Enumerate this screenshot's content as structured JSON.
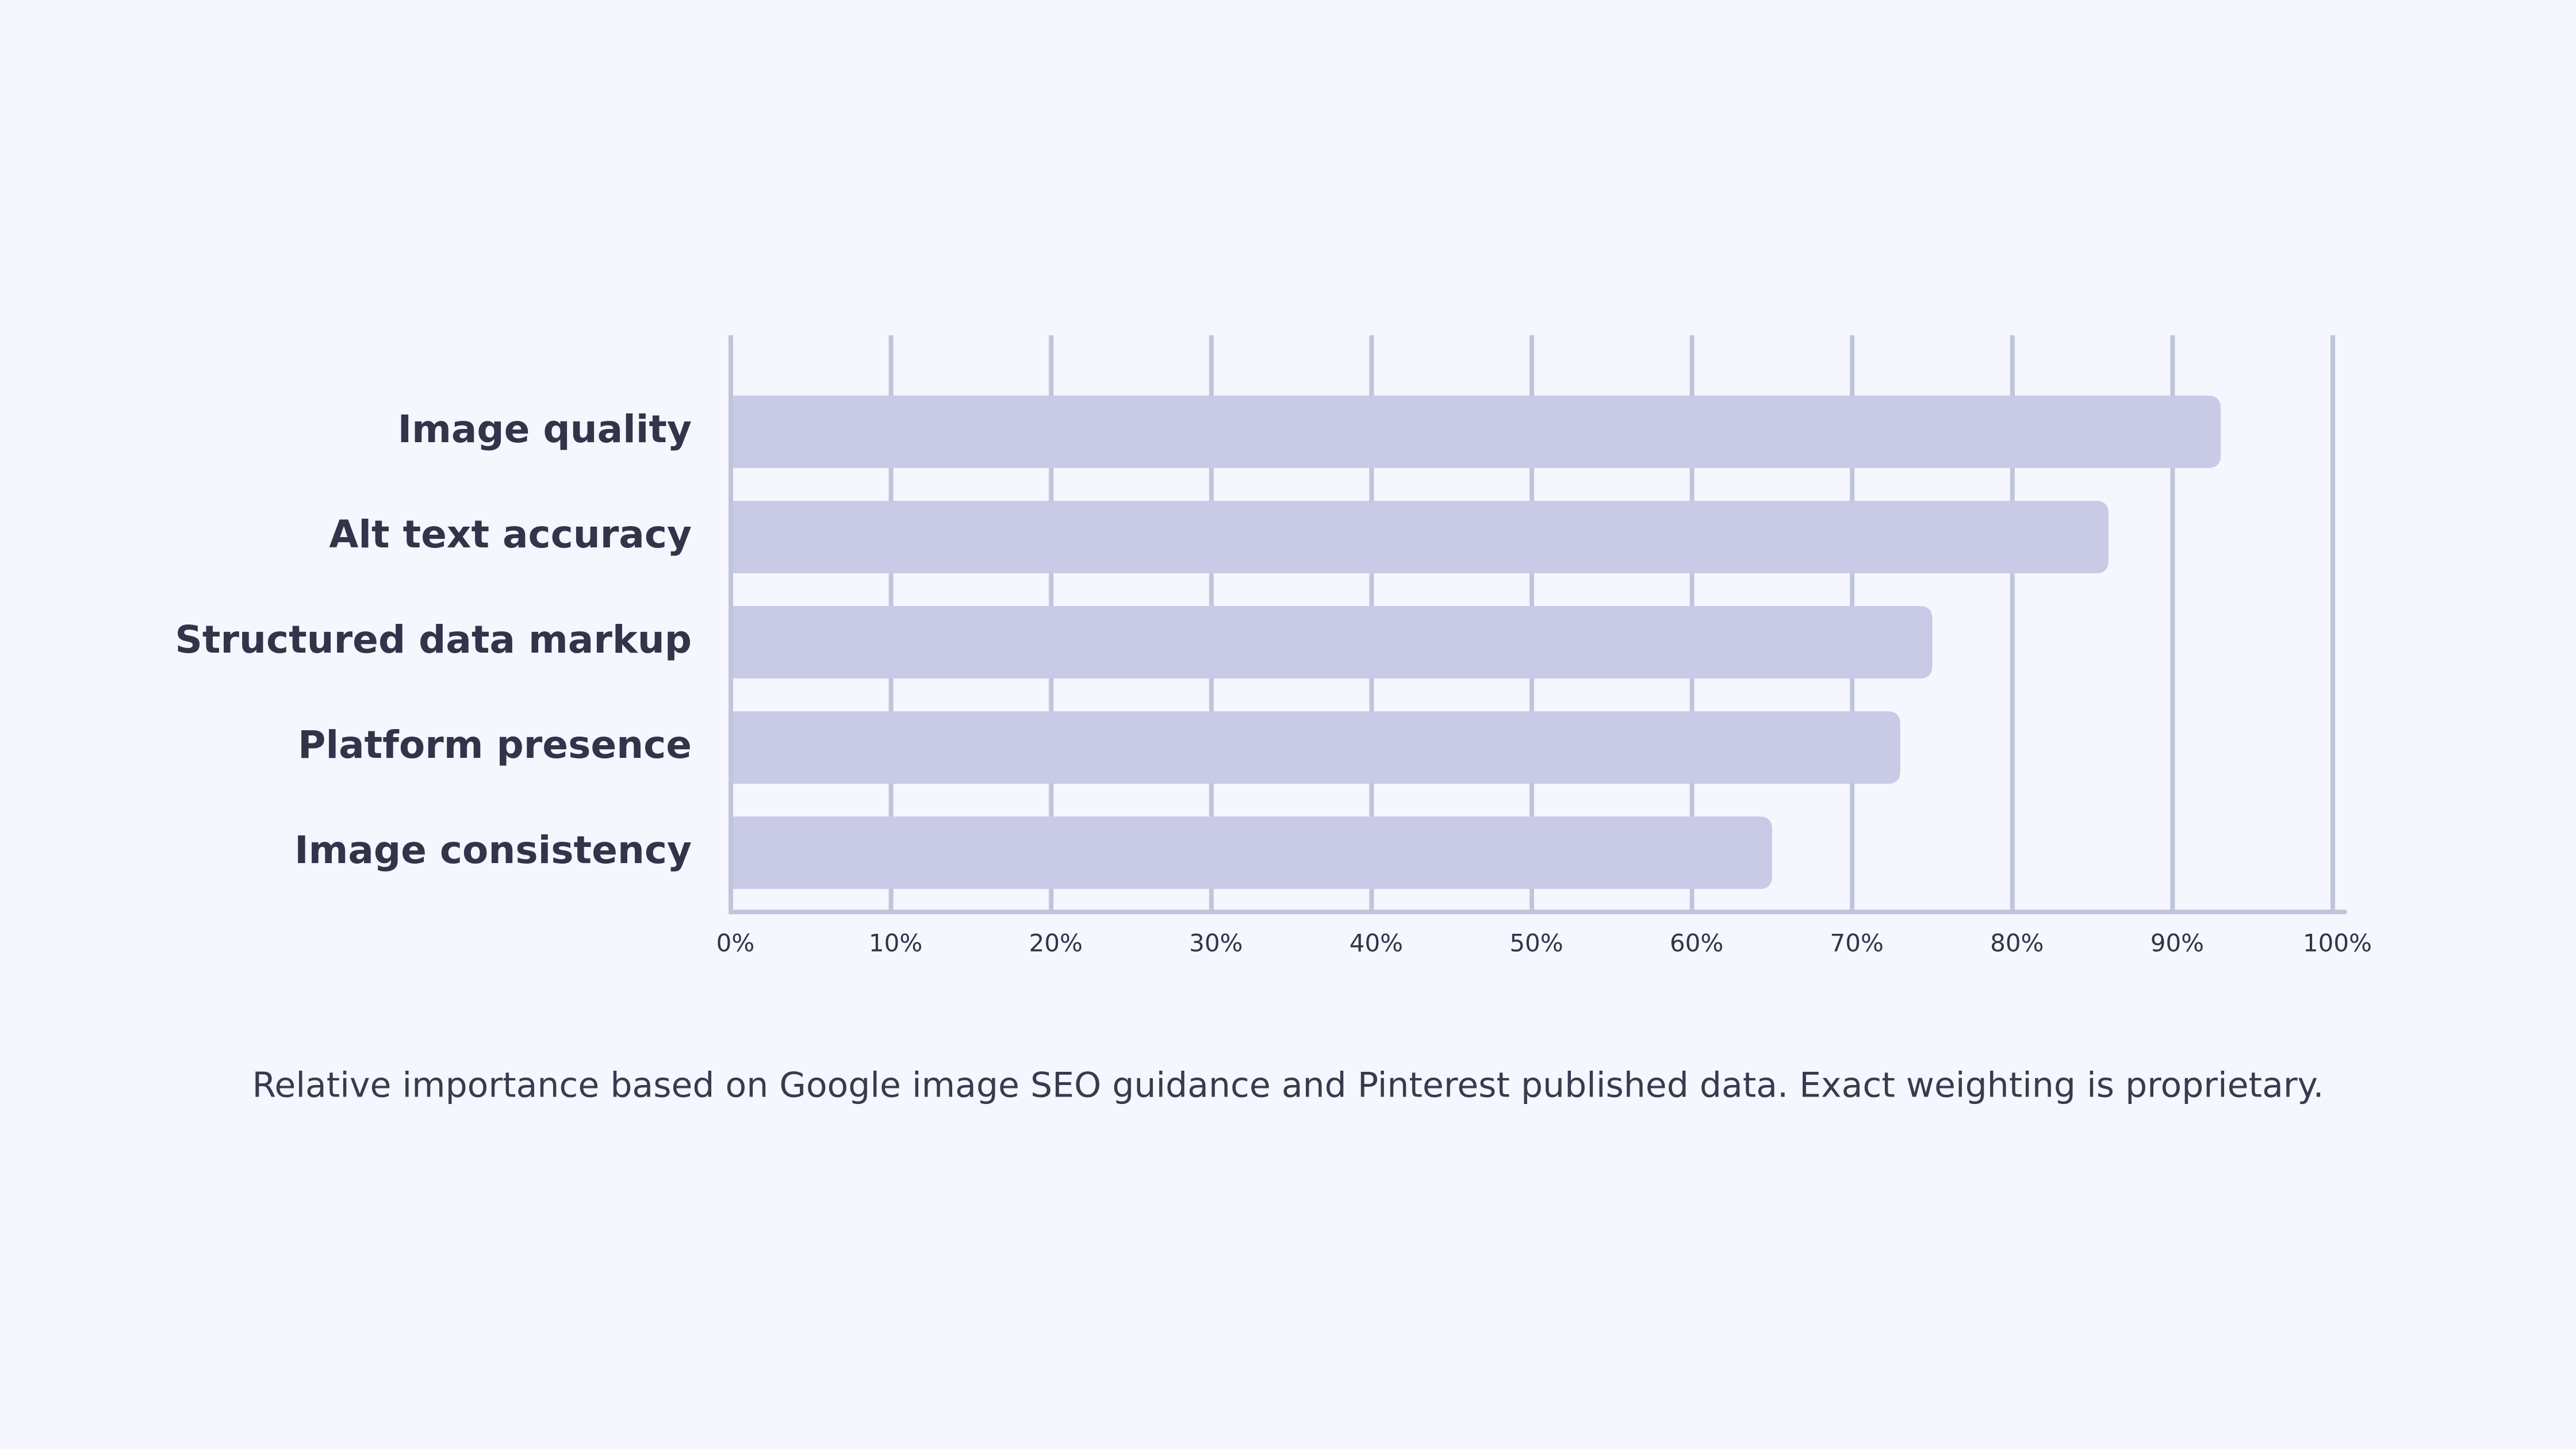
{
  "chart_data": {
    "type": "bar",
    "orientation": "horizontal",
    "categories": [
      "Image quality",
      "Alt text accuracy",
      "Structured data markup",
      "Platform presence",
      "Image consistency"
    ],
    "values": [
      93,
      86,
      75,
      73,
      65
    ],
    "color": "#c9cbe6",
    "xlim": [
      0,
      100
    ],
    "xticks": [
      {
        "value": 0,
        "label": "0%"
      },
      {
        "value": 10,
        "label": "10%"
      },
      {
        "value": 20,
        "label": "20%"
      },
      {
        "value": 30,
        "label": "30%"
      },
      {
        "value": 40,
        "label": "40%"
      },
      {
        "value": 50,
        "label": "50%"
      },
      {
        "value": 60,
        "label": "60%"
      },
      {
        "value": 70,
        "label": "70%"
      },
      {
        "value": 80,
        "label": "80%"
      },
      {
        "value": 90,
        "label": "90%"
      },
      {
        "value": 100,
        "label": "100%"
      }
    ],
    "grid": true,
    "caption": "Relative importance based on Google image SEO guidance and Pinterest published data. Exact weighting is proprietary."
  }
}
